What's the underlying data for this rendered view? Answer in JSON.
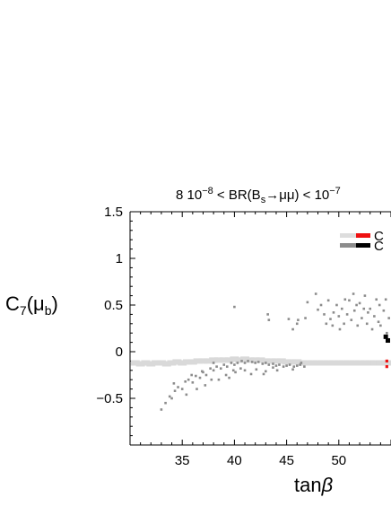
{
  "chart_data": {
    "type": "scatter",
    "title_prefix": "8 10",
    "title_exp1": "−8",
    "title_mid": " < BR(B",
    "title_sub": "s",
    "title_arrow": "→μμ) < 10",
    "title_exp2": "−7",
    "ylabel_main": "C",
    "ylabel_sub": "7",
    "ylabel_arg": "(μ",
    "ylabel_arg_sub": "b",
    "ylabel_close": ")",
    "xlabel_main": "tan",
    "xlabel_greek": "β",
    "xlim": [
      30,
      55
    ],
    "ylim": [
      -1.0,
      1.5
    ],
    "x_ticks": [
      35,
      40,
      45,
      50
    ],
    "x_tick_labels": [
      "35",
      "40",
      "45",
      "50"
    ],
    "y_ticks": [
      1.5,
      1.0,
      0.5,
      0.0,
      -0.5
    ],
    "y_tick_labels": [
      "1.5",
      "1",
      "0.5",
      "0",
      "−0.5"
    ],
    "legend_placement": "top-right",
    "legend": [
      {
        "label": "C",
        "colors": [
          "#dddddd",
          "#ee1111"
        ]
      },
      {
        "label": "C",
        "colors": [
          "#8c8c8c",
          "#000000"
        ]
      }
    ],
    "series": [
      {
        "color": "#d9d9d9",
        "description": "light band",
        "points": [
          [
            30.5,
            -0.12
          ],
          [
            31,
            -0.13
          ],
          [
            31.5,
            -0.12
          ],
          [
            32,
            -0.13
          ],
          [
            32.5,
            -0.12
          ],
          [
            33,
            -0.12
          ],
          [
            33.5,
            -0.13
          ],
          [
            34,
            -0.12
          ],
          [
            34.5,
            -0.11
          ],
          [
            35,
            -0.12
          ],
          [
            35.5,
            -0.11
          ],
          [
            36,
            -0.11
          ],
          [
            36.5,
            -0.1
          ],
          [
            37,
            -0.1
          ],
          [
            37.5,
            -0.1
          ],
          [
            38,
            -0.09
          ],
          [
            38.5,
            -0.09
          ],
          [
            39,
            -0.09
          ],
          [
            39.5,
            -0.09
          ],
          [
            40,
            -0.08
          ],
          [
            40.5,
            -0.09
          ],
          [
            41,
            -0.08
          ],
          [
            41.5,
            -0.09
          ],
          [
            42,
            -0.09
          ],
          [
            42.5,
            -0.09
          ],
          [
            43,
            -0.1
          ],
          [
            43.5,
            -0.1
          ],
          [
            44,
            -0.1
          ],
          [
            44.5,
            -0.1
          ],
          [
            45,
            -0.11
          ],
          [
            45.5,
            -0.11
          ],
          [
            46,
            -0.11
          ],
          [
            46.5,
            -0.12
          ],
          [
            47,
            -0.12
          ],
          [
            47.5,
            -0.12
          ],
          [
            48,
            -0.12
          ],
          [
            48.5,
            -0.12
          ],
          [
            49,
            -0.12
          ],
          [
            49.5,
            -0.12
          ],
          [
            50,
            -0.12
          ],
          [
            50.5,
            -0.12
          ],
          [
            51,
            -0.12
          ],
          [
            51.5,
            -0.12
          ],
          [
            52,
            -0.12
          ],
          [
            52.5,
            -0.12
          ],
          [
            53,
            -0.12
          ],
          [
            53.5,
            -0.12
          ],
          [
            54,
            -0.12
          ],
          [
            54.5,
            -0.12
          ],
          [
            55,
            -0.12
          ]
        ]
      },
      {
        "color": "#8c8c8c",
        "description": "dark cluster left",
        "points": [
          [
            33.0,
            -0.62
          ],
          [
            33.4,
            -0.55
          ],
          [
            33.8,
            -0.48
          ],
          [
            34.0,
            -0.5
          ],
          [
            34.3,
            -0.42
          ],
          [
            34.6,
            -0.38
          ],
          [
            35.0,
            -0.4
          ],
          [
            35.3,
            -0.32
          ],
          [
            35.6,
            -0.3
          ],
          [
            36.0,
            -0.33
          ],
          [
            36.3,
            -0.26
          ],
          [
            36.7,
            -0.28
          ],
          [
            37.0,
            -0.22
          ],
          [
            37.3,
            -0.25
          ],
          [
            37.7,
            -0.18
          ],
          [
            38.0,
            -0.2
          ],
          [
            38.3,
            -0.16
          ],
          [
            38.7,
            -0.18
          ],
          [
            39.0,
            -0.14
          ],
          [
            39.3,
            -0.16
          ],
          [
            39.7,
            -0.12
          ],
          [
            40.0,
            -0.14
          ],
          [
            40.3,
            -0.12
          ],
          [
            40.7,
            -0.1
          ],
          [
            41.0,
            -0.12
          ],
          [
            41.3,
            -0.1
          ],
          [
            41.7,
            -0.11
          ],
          [
            42.0,
            -0.12
          ],
          [
            42.3,
            -0.11
          ],
          [
            42.7,
            -0.13
          ],
          [
            43.0,
            -0.12
          ],
          [
            43.3,
            -0.14
          ],
          [
            43.7,
            -0.13
          ],
          [
            44.0,
            -0.15
          ],
          [
            44.3,
            -0.14
          ],
          [
            44.7,
            -0.16
          ],
          [
            45.0,
            -0.15
          ],
          [
            45.3,
            -0.14
          ],
          [
            45.7,
            -0.16
          ],
          [
            46.0,
            -0.15
          ],
          [
            46.3,
            -0.14
          ],
          [
            46.7,
            -0.16
          ],
          [
            38.5,
            -0.3
          ],
          [
            39.2,
            -0.25
          ],
          [
            40.1,
            -0.22
          ],
          [
            41.0,
            -0.2
          ],
          [
            42.1,
            -0.19
          ],
          [
            43.0,
            -0.21
          ],
          [
            36.4,
            -0.4
          ],
          [
            37.2,
            -0.36
          ],
          [
            35.4,
            -0.46
          ],
          [
            34.2,
            -0.34
          ],
          [
            38.0,
            -0.12
          ],
          [
            39.5,
            -0.28
          ],
          [
            41.6,
            -0.24
          ],
          [
            40.6,
            -0.18
          ],
          [
            42.8,
            -0.24
          ],
          [
            44.1,
            -0.2
          ],
          [
            37.8,
            -0.3
          ],
          [
            36.9,
            -0.21
          ],
          [
            35.9,
            -0.25
          ],
          [
            39.9,
            -0.2
          ],
          [
            43.7,
            -0.17
          ],
          [
            45.6,
            -0.19
          ],
          [
            46.4,
            -0.12
          ]
        ]
      },
      {
        "color": "#8c8c8c",
        "description": "dark cluster right",
        "points": [
          [
            40.0,
            0.48
          ],
          [
            43.2,
            0.4
          ],
          [
            43.3,
            0.34
          ],
          [
            45.2,
            0.35
          ],
          [
            45.6,
            0.24
          ],
          [
            46.0,
            0.3
          ],
          [
            46.1,
            0.34
          ],
          [
            47.0,
            0.53
          ],
          [
            47.8,
            0.62
          ],
          [
            48.0,
            0.45
          ],
          [
            48.3,
            0.5
          ],
          [
            48.6,
            0.4
          ],
          [
            49.0,
            0.55
          ],
          [
            49.2,
            0.35
          ],
          [
            49.5,
            0.42
          ],
          [
            49.8,
            0.5
          ],
          [
            50.0,
            0.38
          ],
          [
            50.3,
            0.46
          ],
          [
            50.5,
            0.3
          ],
          [
            50.8,
            0.4
          ],
          [
            51.0,
            0.55
          ],
          [
            51.2,
            0.34
          ],
          [
            51.5,
            0.44
          ],
          [
            51.8,
            0.28
          ],
          [
            52.0,
            0.52
          ],
          [
            52.2,
            0.36
          ],
          [
            52.5,
            0.6
          ],
          [
            52.7,
            0.3
          ],
          [
            53.0,
            0.46
          ],
          [
            53.2,
            0.24
          ],
          [
            53.4,
            0.38
          ],
          [
            53.6,
            0.56
          ],
          [
            54.0,
            0.28
          ],
          [
            54.3,
            0.44
          ],
          [
            54.6,
            0.2
          ],
          [
            54.8,
            0.36
          ],
          [
            49.4,
            0.28
          ],
          [
            50.6,
            0.56
          ],
          [
            51.4,
            0.62
          ],
          [
            52.8,
            0.42
          ],
          [
            53.8,
            0.32
          ],
          [
            48.8,
            0.3
          ],
          [
            50.1,
            0.24
          ],
          [
            51.7,
            0.5
          ],
          [
            52.4,
            0.46
          ],
          [
            53.9,
            0.5
          ],
          [
            54.5,
            0.56
          ],
          [
            46.8,
            0.36
          ]
        ]
      },
      {
        "color": "#000000",
        "description": "black points",
        "points": [
          [
            54.5,
            0.16
          ],
          [
            54.7,
            0.12
          ]
        ]
      },
      {
        "color": "#ee1111",
        "description": "red points",
        "points": [
          [
            54.6,
            -0.1
          ],
          [
            54.6,
            -0.16
          ]
        ]
      }
    ]
  }
}
